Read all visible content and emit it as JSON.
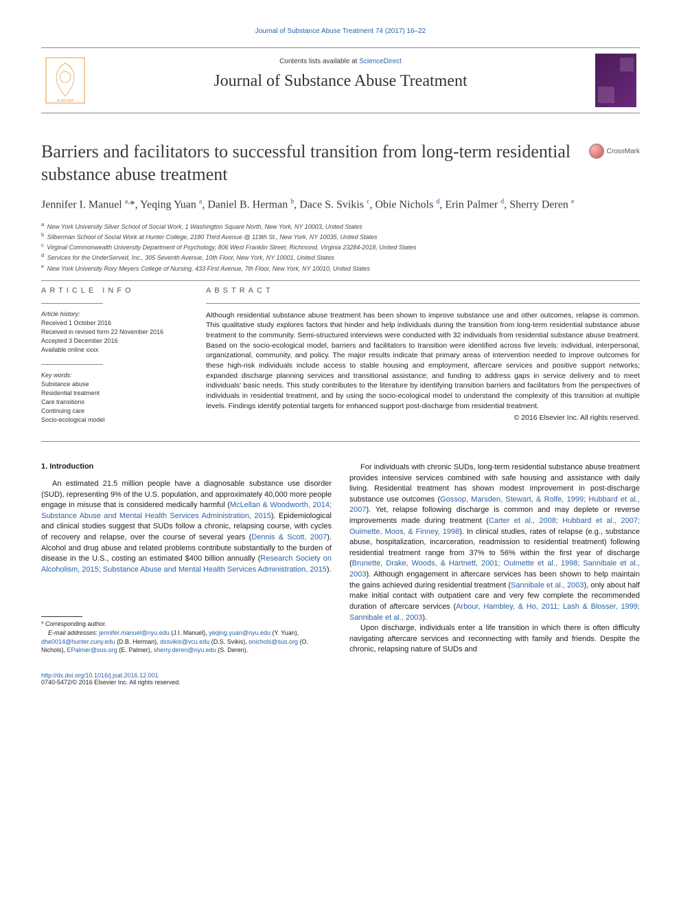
{
  "top_link": "Journal of Substance Abuse Treatment 74 (2017) 16–22",
  "header": {
    "contents_prefix": "Contents lists available at ",
    "contents_link": "ScienceDirect",
    "journal_name": "Journal of Substance Abuse Treatment"
  },
  "crossmark_label": "CrossMark",
  "title": "Barriers and facilitators to successful transition from long-term residential substance abuse treatment",
  "authors_html": "Jennifer I. Manuel <sup>a,</sup><span class='star'>*</span>, Yeqing Yuan <sup>a</sup>, Daniel B. Herman <sup>b</sup>, Dace S. Svikis <sup>c</sup>, Obie Nichols <sup>d</sup>, Erin Palmer <sup>d</sup>, Sherry Deren <sup>e</sup>",
  "affiliations": [
    "a  New York University Silver School of Social Work, 1 Washington Square North, New York, NY 10003, United States",
    "b  Silberman School of Social Work at Hunter College, 2180 Third Avenue @ 119th St., New York, NY 10035, United States",
    "c  Virginal Commonwealth University Department of Psychology, 806 West Franklin Street, Richmond, Virginia 23284-2018, United States",
    "d  Services for the UnderServed, Inc., 305 Seventh Avenue, 10th Floor, New York, NY 10001, United States",
    "e  New York University Rory Meyers College of Nursing, 433 First Avenue, 7th Floor, New York, NY 10010, United States"
  ],
  "info": {
    "heading": "article info",
    "history_label": "Article history:",
    "history": [
      "Received 1 October 2016",
      "Received in revised form 22 November 2016",
      "Accepted 3 December 2016",
      "Available online xxxx"
    ],
    "keywords_label": "Key words:",
    "keywords": [
      "Substance abuse",
      "Residential treatment",
      "Care transitions",
      "Continuing care",
      "Socio-ecological model"
    ]
  },
  "abstract": {
    "heading": "abstract",
    "text": "Although residential substance abuse treatment has been shown to improve substance use and other outcomes, relapse is common. This qualitative study explores factors that hinder and help individuals during the transition from long-term residential substance abuse treatment to the community. Semi-structured interviews were conducted with 32 individuals from residential substance abuse treatment. Based on the socio-ecological model, barriers and facilitators to transition were identified across five levels: individual, interpersonal, organizational, community, and policy. The major results indicate that primary areas of intervention needed to improve outcomes for these high-risk individuals include access to stable housing and employment, aftercare services and positive support networks; expanded discharge planning services and transitional assistance; and funding to address gaps in service delivery and to meet individuals' basic needs. This study contributes to the literature by identifying transition barriers and facilitators from the perspectives of individuals in residential treatment, and by using the socio-ecological model to understand the complexity of this transition at multiple levels. Findings identify potential targets for enhanced support post-discharge from residential treatment.",
    "copyright": "© 2016 Elsevier Inc. All rights reserved."
  },
  "intro_heading": "1. Introduction",
  "left_para1_a": "An estimated 21.5 million people have a diagnosable substance use disorder (SUD), representing 9% of the U.S. population, and approximately 40,000 more people engage in misuse that is considered medically harmful (",
  "left_para1_ref1": "McLellan & Woodworth, 2014; Substance Abuse and Mental Health Services Administration, 2015",
  "left_para1_b": "). Epidemiological and clinical studies suggest that SUDs follow a chronic, relapsing course, with cycles of recovery and relapse, over the course of several years (",
  "left_para1_ref2": "Dennis & Scott, 2007",
  "left_para1_c": "). Alcohol and drug abuse and related problems contribute substantially to the burden of disease in the U.S., costing an estimated $400 billion annually (",
  "left_para1_ref3": "Research Society on Alcoholism, 2015; Substance Abuse and Mental Health Services Administration, 2015",
  "left_para1_d": ").",
  "right_para1_a": "For individuals with chronic SUDs, long-term residential substance abuse treatment provides intensive services combined with safe housing and assistance with daily living. Residential treatment has shown modest improvement in post-discharge substance use outcomes (",
  "right_para1_ref1": "Gossop, Marsden, Stewart, & Rolfe, 1999; Hubbard et al., 2007",
  "right_para1_b": "). Yet, relapse following discharge is common and may deplete or reverse improvements made during treatment (",
  "right_para1_ref2": "Carter et al., 2008; Hubbard et al., 2007; Ouimette, Moos, & Finney, 1998",
  "right_para1_c": "). In clinical studies, rates of relapse (e.g., substance abuse, hospitalization, incarceration, readmission to residential treatment) following residential treatment range from 37% to 56% within the first year of discharge (",
  "right_para1_ref3": "Brunette, Drake, Woods, & Hartnett, 2001; Ouimette et al., 1998; Sannibale et al., 2003",
  "right_para1_d": "). Although engagement in aftercare services has been shown to help maintain the gains achieved during residential treatment (",
  "right_para1_ref4": "Sannibale et al., 2003",
  "right_para1_e": "), only about half make initial contact with outpatient care and very few complete the recommended duration of aftercare services (",
  "right_para1_ref5": "Arbour, Hambley, & Ho, 2011; Lash & Blosser, 1999; Sannibale et al., 2003",
  "right_para1_f": ").",
  "right_para2": "Upon discharge, individuals enter a life transition in which there is often difficulty navigating aftercare services and reconnecting with family and friends. Despite the chronic, relapsing nature of SUDs and",
  "footnote": {
    "corr": "* Corresponding author.",
    "email_label": "E-mail addresses:",
    "emails": " jennifer.manuel@nyu.edu (J.I. Manuel), yeqing.yuan@nyu.edu (Y. Yuan), dhe0014@hunter.cuny.edu (D.B. Herman), dssvikis@vcu.edu (D.S. Svikis), onichols@sus.org (O. Nichols), EPalmer@sus.org (E. Palmer), sherry.deren@nyu.edu (S. Deren)."
  },
  "footer": {
    "doi": "http://dx.doi.org/10.1016/j.jsat.2016.12.001",
    "issn": "0740-5472/© 2016 Elsevier Inc. All rights reserved."
  },
  "colors": {
    "link": "#2861a8",
    "text": "#1a1a1a",
    "rule": "#888888",
    "cover_bg": "#5a2a6a"
  }
}
